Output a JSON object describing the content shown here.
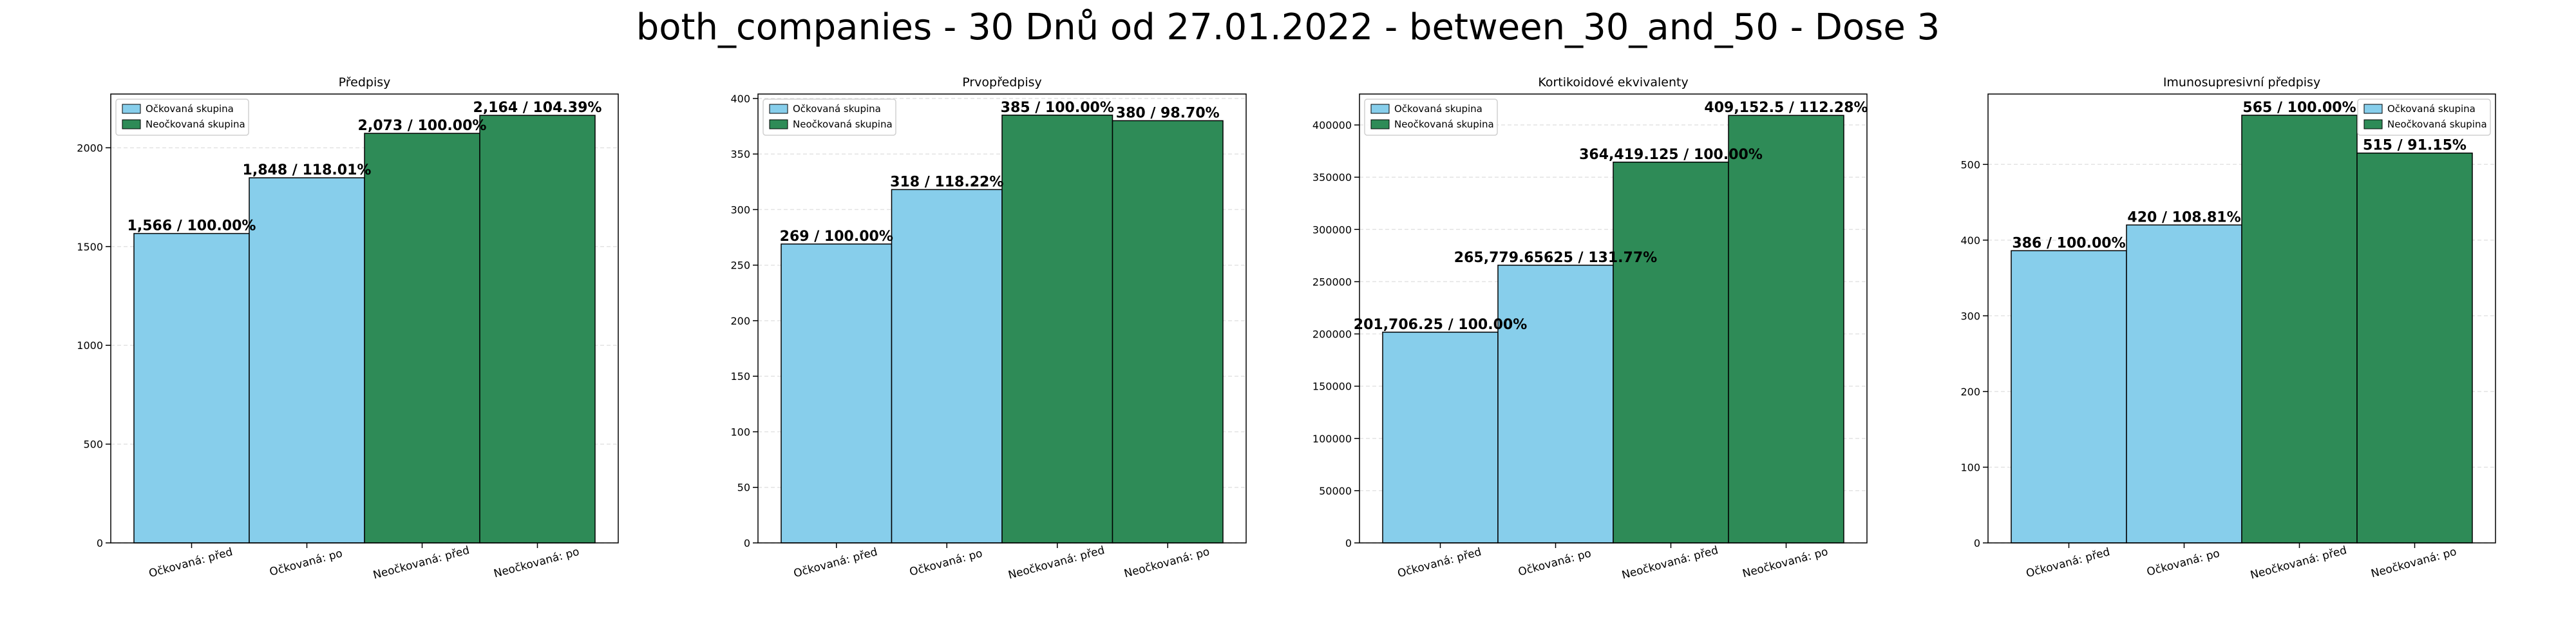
{
  "figure": {
    "suptitle": "both_companies - 30 Dnů od 27.01.2022 - between_30_and_50 - Dose 3"
  },
  "colors": {
    "vaccinated": "#87CEEB",
    "unvaccinated": "#2E8B57",
    "edge": "#000000",
    "grid": "#b0b0b0"
  },
  "legend": {
    "vaccinated": "Očkovaná skupina",
    "unvaccinated": "Neočkovaná skupina"
  },
  "chart_data": [
    {
      "type": "bar",
      "title": "Předpisy",
      "categories": [
        "Očkovaná: před",
        "Očkovaná: po",
        "Neočkovaná: před",
        "Neočkovaná: po"
      ],
      "values": [
        1566,
        1848,
        2073,
        2164
      ],
      "bar_labels": [
        "1,566 / 100.00%",
        "1,848 / 118.01%",
        "2,073 / 100.00%",
        "2,164 / 104.39%"
      ],
      "groups": [
        "vaccinated",
        "vaccinated",
        "unvaccinated",
        "unvaccinated"
      ],
      "ylim": [
        0,
        2272
      ],
      "yticks": [
        0,
        500,
        1000,
        1500,
        2000
      ],
      "ytick_labels": [
        "0",
        "500",
        "1000",
        "1500",
        "2000"
      ],
      "grid": "horizontal",
      "legend_position": "top-left"
    },
    {
      "type": "bar",
      "title": "Prvopředpisy",
      "categories": [
        "Očkovaná: před",
        "Očkovaná: po",
        "Neočkovaná: před",
        "Neočkovaná: po"
      ],
      "values": [
        269,
        318,
        385,
        380
      ],
      "bar_labels": [
        "269 / 100.00%",
        "318 / 118.22%",
        "385 / 100.00%",
        "380 / 98.70%"
      ],
      "groups": [
        "vaccinated",
        "vaccinated",
        "unvaccinated",
        "unvaccinated"
      ],
      "ylim": [
        0,
        404
      ],
      "yticks": [
        0,
        50,
        100,
        150,
        200,
        250,
        300,
        350,
        400
      ],
      "ytick_labels": [
        "0",
        "50",
        "100",
        "150",
        "200",
        "250",
        "300",
        "350",
        "400"
      ],
      "grid": "horizontal",
      "legend_position": "top-left"
    },
    {
      "type": "bar",
      "title": "Kortikoidové ekvivalenty",
      "categories": [
        "Očkovaná: před",
        "Očkovaná: po",
        "Neočkovaná: před",
        "Neočkovaná: po"
      ],
      "values": [
        201706.25,
        265779.65625,
        364419.125,
        409152.5
      ],
      "bar_labels": [
        "201,706.25 / 100.00%",
        "265,779.65625 / 131.77%",
        "364,419.125 / 100.00%",
        "409,152.5 / 112.28%"
      ],
      "groups": [
        "vaccinated",
        "vaccinated",
        "unvaccinated",
        "unvaccinated"
      ],
      "ylim": [
        0,
        429610
      ],
      "yticks": [
        0,
        50000,
        100000,
        150000,
        200000,
        250000,
        300000,
        350000,
        400000
      ],
      "ytick_labels": [
        "0",
        "50000",
        "100000",
        "150000",
        "200000",
        "250000",
        "300000",
        "350000",
        "400000"
      ],
      "grid": "horizontal",
      "legend_position": "top-left"
    },
    {
      "type": "bar",
      "title": "Imunosupresivní předpisy",
      "categories": [
        "Očkovaná: před",
        "Očkovaná: po",
        "Neočkovaná: před",
        "Neočkovaná: po"
      ],
      "values": [
        386,
        420,
        565,
        515
      ],
      "bar_labels": [
        "386 / 100.00%",
        "420 / 108.81%",
        "565 / 100.00%",
        "515 / 91.15%"
      ],
      "groups": [
        "vaccinated",
        "vaccinated",
        "unvaccinated",
        "unvaccinated"
      ],
      "ylim": [
        0,
        593
      ],
      "yticks": [
        0,
        100,
        200,
        300,
        400,
        500
      ],
      "ytick_labels": [
        "0",
        "100",
        "200",
        "300",
        "400",
        "500"
      ],
      "grid": "horizontal",
      "legend_position": "top-right"
    }
  ]
}
